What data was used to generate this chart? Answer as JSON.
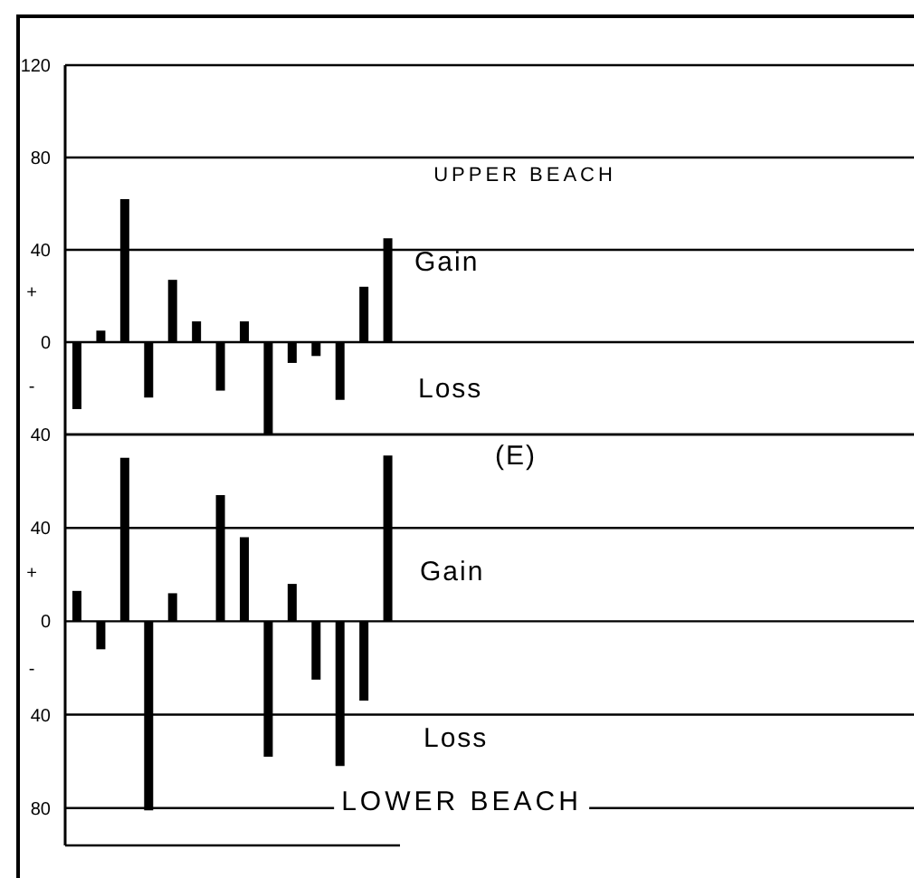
{
  "chart_data": [
    {
      "type": "bar",
      "categories": [
        null,
        null,
        null,
        null,
        null,
        null,
        null,
        null,
        null,
        null,
        null,
        null,
        null,
        null
      ],
      "values": [
        -29,
        5,
        62,
        -24,
        27,
        9,
        -21,
        9,
        -40,
        -9,
        -6,
        -25,
        24,
        45
      ],
      "color": "#000000",
      "ylim": [
        -40,
        120
      ],
      "yticks": [
        {
          "value": -40,
          "label": "40"
        },
        0,
        40,
        80,
        120
      ],
      "grid": "y",
      "annotations": [
        "UPPER BEACH",
        "Gain",
        "Loss",
        "+",
        "-"
      ]
    },
    {
      "type": "bar",
      "categories": [
        null,
        null,
        null,
        null,
        null,
        null,
        null,
        null,
        null,
        null,
        null,
        null,
        null,
        null
      ],
      "values": [
        13,
        -12,
        70,
        -81,
        12,
        null,
        54,
        36,
        -58,
        16,
        -25,
        -62,
        -34,
        71
      ],
      "color": "#000000",
      "ylim": [
        -96,
        80
      ],
      "yticks": [
        {
          "value": -80,
          "label": "80"
        },
        {
          "value": -40,
          "label": "40"
        },
        0,
        40,
        {
          "value": 80,
          "label": null
        }
      ],
      "grid": "y",
      "annotations": [
        "(E)",
        "Gain",
        "Loss",
        "LOWER BEACH",
        "+",
        "-"
      ]
    }
  ]
}
